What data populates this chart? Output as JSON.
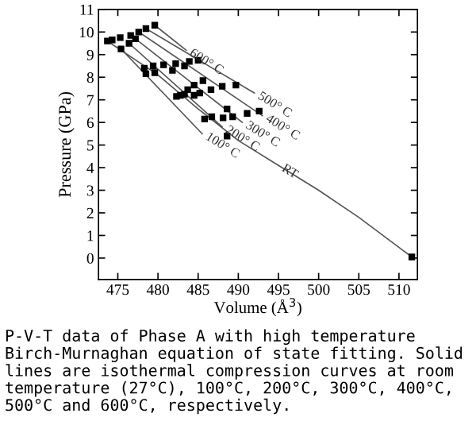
{
  "chart_data": {
    "type": "scatter",
    "xlabel": "Volume (Å$^{3}$)",
    "ylabel": "Pressure (GPa)",
    "xlim": [
      472.6,
      512.3
    ],
    "ylim": [
      -0.95,
      11
    ],
    "xticks": [
      475,
      480,
      485,
      490,
      495,
      500,
      505,
      510
    ],
    "yticks": [
      0,
      1,
      2,
      3,
      4,
      5,
      6,
      7,
      8,
      9,
      10,
      11
    ],
    "grid": false,
    "legend": false,
    "marker": "square",
    "series": [
      {
        "color": "#000000",
        "x": [
          473.7,
          474.3,
          475.3,
          476.6,
          477.6,
          478.5,
          479.6,
          475.4,
          476.4,
          477.2,
          478.3,
          478.5,
          479.4,
          479.6,
          480.7,
          481.8,
          482.2,
          483.3,
          483.9,
          485.0,
          489.7,
          482.3,
          482.8,
          483.3,
          483.7,
          484.5,
          484.5,
          485.2,
          485.6,
          486.6,
          488.0,
          485.8,
          486.7,
          488.1,
          488.6,
          489.3,
          491.1,
          492.6,
          488.6,
          511.6
        ],
        "values": [
          9.6,
          9.65,
          9.75,
          9.85,
          10.0,
          10.15,
          10.3,
          9.25,
          9.5,
          9.7,
          8.4,
          8.15,
          8.5,
          8.2,
          8.55,
          8.3,
          8.6,
          8.5,
          8.7,
          8.75,
          7.65,
          7.15,
          7.2,
          7.25,
          7.45,
          7.2,
          7.65,
          7.3,
          7.85,
          7.45,
          7.6,
          6.15,
          6.25,
          6.2,
          6.6,
          6.25,
          6.4,
          6.5,
          5.4,
          0.05
        ]
      },
      {
        "type": "line",
        "color": "#555555",
        "marker": "none",
        "x": [
          473.7,
          480,
          485,
          490,
          495,
          500,
          505,
          511.6
        ],
        "values": [
          9.6,
          8.1,
          6.6,
          5.2,
          4.1,
          3.0,
          1.8,
          0.05
        ]
      },
      {
        "type": "line",
        "color": "#555555",
        "marker": "none",
        "x": [
          475.4,
          485.5
        ],
        "values": [
          9.25,
          5.5
        ]
      },
      {
        "type": "line",
        "color": "#555555",
        "marker": "none",
        "x": [
          476.4,
          488.0
        ],
        "values": [
          9.5,
          5.8
        ]
      },
      {
        "type": "line",
        "color": "#555555",
        "marker": "none",
        "x": [
          477.2,
          490.5
        ],
        "values": [
          9.7,
          6.0
        ]
      },
      {
        "type": "line",
        "color": "#555555",
        "marker": "none",
        "x": [
          477.6,
          493.0
        ],
        "values": [
          10.0,
          6.3
        ]
      },
      {
        "type": "line",
        "color": "#555555",
        "marker": "none",
        "x": [
          478.5,
          492.0
        ],
        "values": [
          10.15,
          7.3
        ]
      },
      {
        "type": "line",
        "color": "#555555",
        "marker": "none",
        "x": [
          479.6,
          483.5
        ],
        "values": [
          10.3,
          9.2
        ]
      }
    ],
    "annotations": [
      {
        "text": "RT",
        "x": 495,
        "y": 4.1
      },
      {
        "text": "100° C",
        "x": 485.5,
        "y": 5.5
      },
      {
        "text": "200° C",
        "x": 488.0,
        "y": 5.8
      },
      {
        "text": "300° C",
        "x": 490.5,
        "y": 6.0
      },
      {
        "text": "400° C",
        "x": 493.0,
        "y": 6.3
      },
      {
        "text": "500° C",
        "x": 492.0,
        "y": 7.3
      },
      {
        "text": "600° C",
        "x": 483.5,
        "y": 9.2
      },
      "P-V-T data of Phase A with high temperature Birch-Murnaghan equation of state fitting. Solid lines are isothermal compression curves at room temperature (27°C), 100°C, 200°C, 300°C, 400°C, 500°C and 600°C, respectively."
    ]
  }
}
